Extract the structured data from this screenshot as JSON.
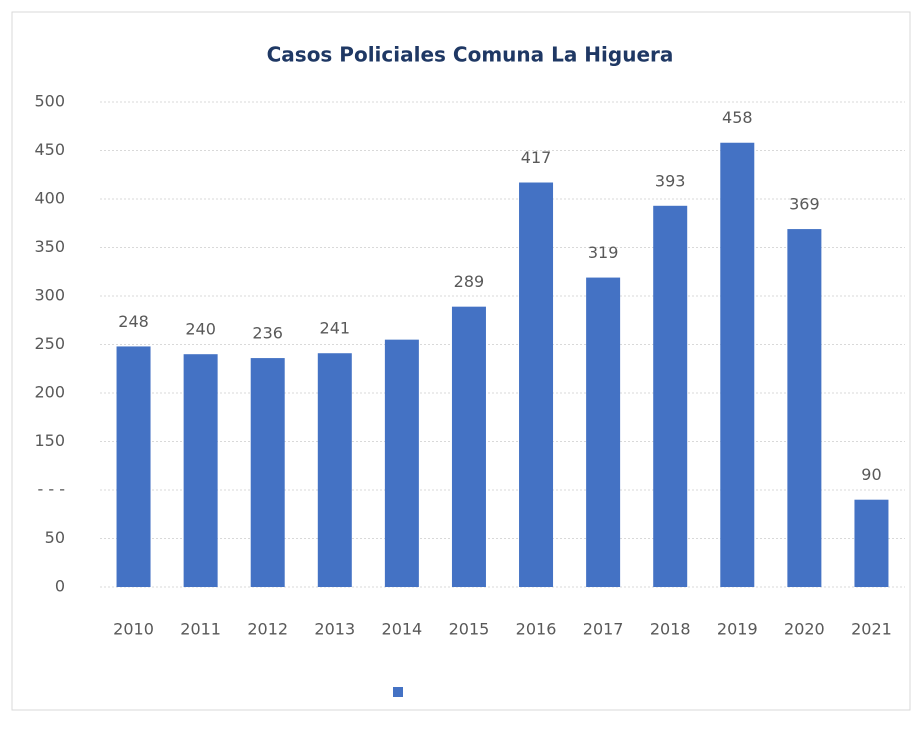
{
  "chart_data": {
    "type": "bar",
    "title": "Casos Policiales Comuna La Higuera",
    "categories": [
      "2010",
      "2011",
      "2012",
      "2013",
      "2014",
      "2015",
      "2016",
      "2017",
      "2018",
      "2019",
      "2020",
      "2021"
    ],
    "values": [
      248,
      240,
      236,
      241,
      255,
      289,
      417,
      319,
      393,
      458,
      369,
      90
    ],
    "value_labels": [
      "248",
      "240",
      "236",
      "241",
      null,
      "289",
      "417",
      "319",
      "393",
      "458",
      "369",
      "90"
    ],
    "color": "#4472c4",
    "ylim": [
      0,
      500
    ],
    "yticks": [
      0,
      50,
      {
        "value": 100,
        "label": "- - -"
      },
      150,
      200,
      250,
      300,
      350,
      400,
      450,
      500
    ],
    "grid": true,
    "legend": true
  }
}
